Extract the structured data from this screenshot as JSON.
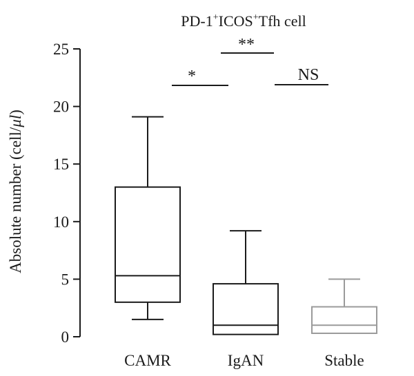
{
  "chart_data": {
    "type": "box",
    "title_parts": [
      {
        "text": "PD-1",
        "sup": false
      },
      {
        "text": "+",
        "sup": true
      },
      {
        "text": "ICOS",
        "sup": false
      },
      {
        "text": "+",
        "sup": true
      },
      {
        "text": "Tfh cell",
        "sup": false
      }
    ],
    "ylabel_parts": [
      {
        "text": "Absolute number (cell/",
        "italic": false
      },
      {
        "text": "μl",
        "italic": true
      },
      {
        "text": ")",
        "italic": false
      }
    ],
    "xlabel": "",
    "ylim": [
      0,
      25
    ],
    "yticks": [
      0,
      5,
      10,
      15,
      20,
      25
    ],
    "categories": [
      "CAMR",
      "IgAN",
      "Stable"
    ],
    "boxes": [
      {
        "category": "CAMR",
        "whisker_low": 1.5,
        "q1": 3.0,
        "median": 5.3,
        "q3": 13.0,
        "whisker_high": 19.1,
        "color": "#1a1a1a"
      },
      {
        "category": "IgAN",
        "whisker_low": 0.2,
        "q1": 0.2,
        "median": 1.0,
        "q3": 4.6,
        "whisker_high": 9.2,
        "color": "#1a1a1a"
      },
      {
        "category": "Stable",
        "whisker_low": 0.3,
        "q1": 0.3,
        "median": 1.0,
        "q3": 2.6,
        "whisker_high": 5.0,
        "color": "#9a9a9a"
      }
    ],
    "significance": [
      {
        "from": "CAMR",
        "to": "IgAN",
        "label": "*",
        "y": 21.9
      },
      {
        "from": "IgAN",
        "to": "IgAN",
        "label": "**",
        "y": 24.6
      },
      {
        "from": "IgAN",
        "to": "Stable",
        "label": "NS",
        "y": 21.9
      }
    ],
    "grid": false,
    "legend": "none"
  }
}
